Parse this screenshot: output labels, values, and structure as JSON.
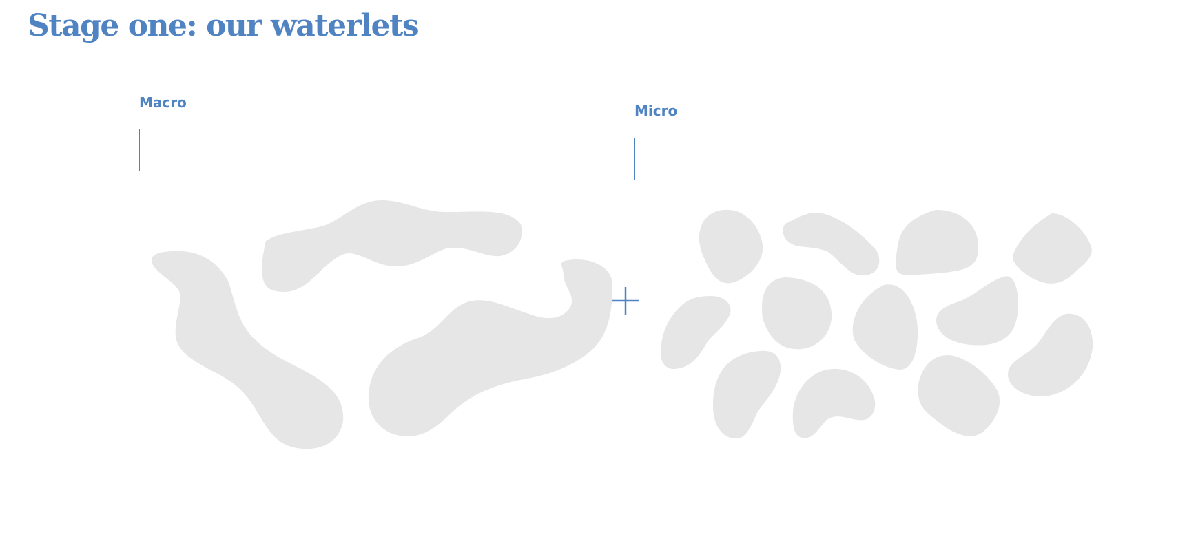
{
  "header": {
    "title": "Stage one: our waterlets"
  },
  "groups": {
    "macro": {
      "label": "Macro"
    },
    "micro": {
      "label": "Micro"
    }
  },
  "colors": {
    "accent": "#4f83c2",
    "blob_fill": "#e6e6e6",
    "background": "#ffffff"
  },
  "icons": {
    "connector": "plus-icon"
  }
}
